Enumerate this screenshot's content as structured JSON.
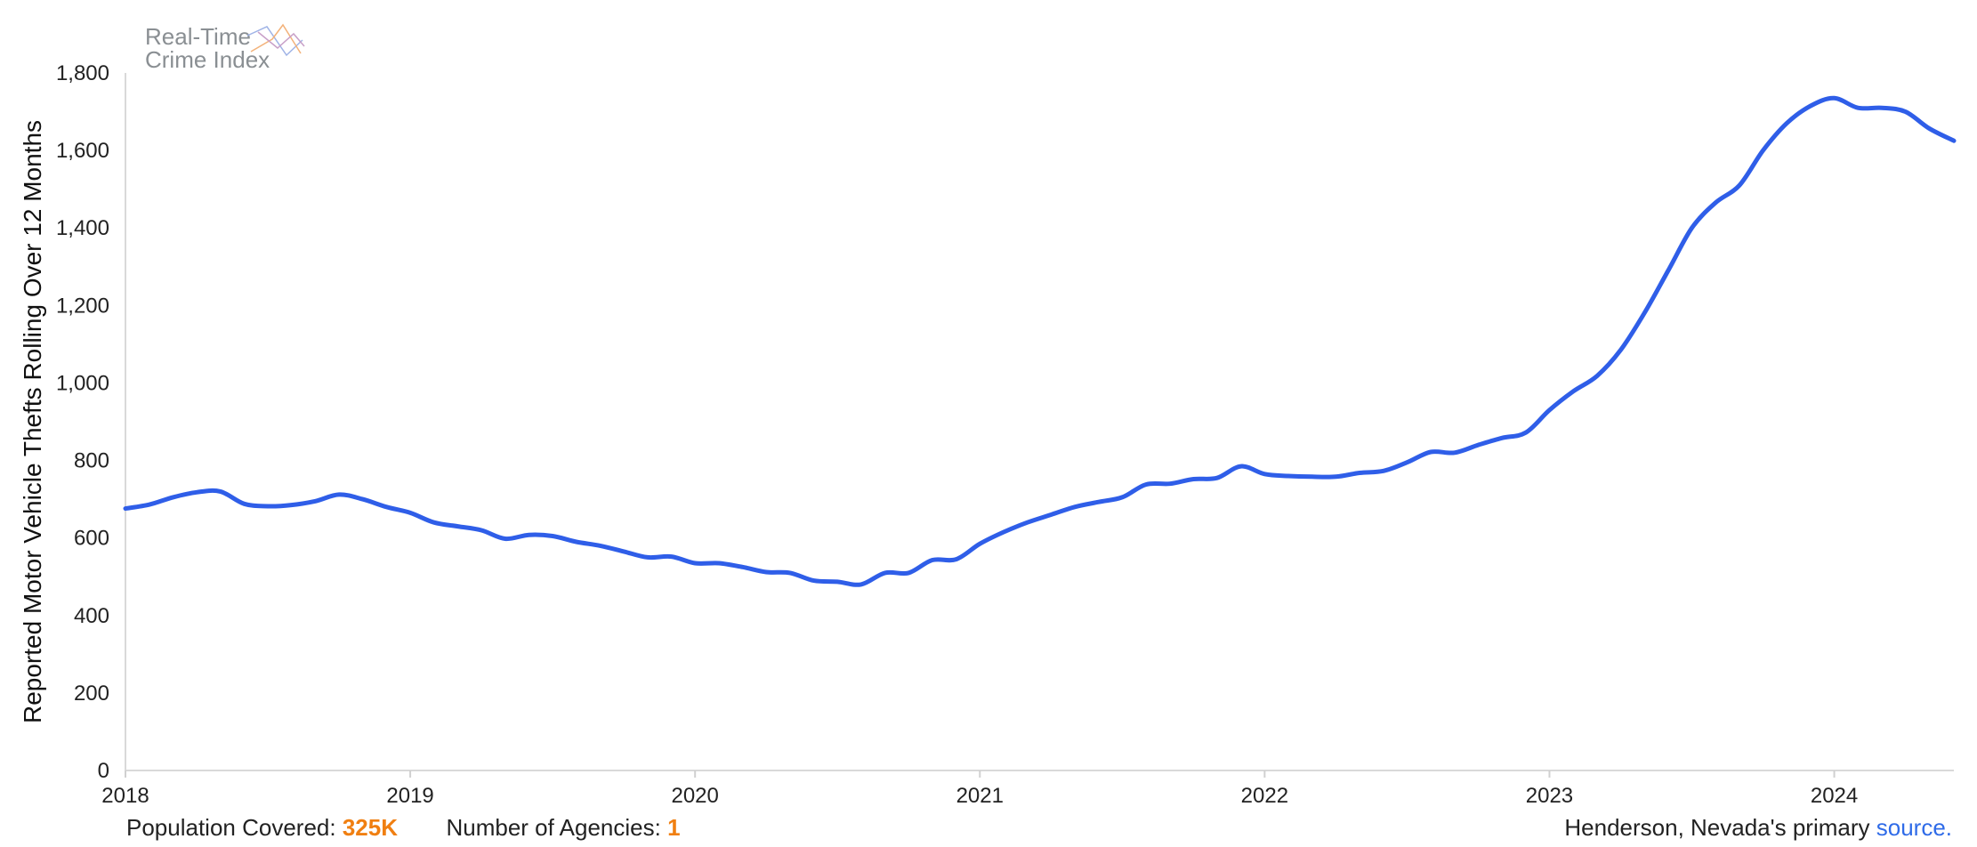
{
  "logo": {
    "line1": "Real-Time",
    "line2": "Crime Index"
  },
  "footer": {
    "population_label": "Population Covered:",
    "population_value": "325K",
    "agencies_label": "Number of Agencies:",
    "agencies_value": "1",
    "source_prefix": "Henderson, Nevada's primary",
    "source_link": "source."
  },
  "colors": {
    "line": "#2f5ee8",
    "accent": "#f07f11",
    "link": "#2f6be8",
    "axis": "#cfcfcf"
  },
  "chart_data": {
    "type": "line",
    "title": "",
    "xlabel": "",
    "ylabel": "Reported Motor Vehicle Thefts Rolling Over 12 Months",
    "ylim": [
      0,
      1800
    ],
    "yticks": [
      0,
      200,
      400,
      600,
      800,
      1000,
      1200,
      1400,
      1600,
      1800
    ],
    "ytick_labels": [
      "0",
      "200",
      "400",
      "600",
      "800",
      "1,000",
      "1,200",
      "1,400",
      "1,600",
      "1,800"
    ],
    "xlim": [
      2018.0,
      2024.42
    ],
    "xticks": [
      2018,
      2019,
      2020,
      2021,
      2022,
      2023,
      2024
    ],
    "xtick_labels": [
      "2018",
      "2019",
      "2020",
      "2021",
      "2022",
      "2023",
      "2024"
    ],
    "grid": false,
    "series": [
      {
        "x": [
          2018.0,
          2018.083,
          2018.167,
          2018.25,
          2018.333,
          2018.417,
          2018.5,
          2018.583,
          2018.667,
          2018.75,
          2018.833,
          2018.917,
          2019.0,
          2019.083,
          2019.167,
          2019.25,
          2019.333,
          2019.417,
          2019.5,
          2019.583,
          2019.667,
          2019.75,
          2019.833,
          2019.917,
          2020.0,
          2020.083,
          2020.167,
          2020.25,
          2020.333,
          2020.417,
          2020.5,
          2020.583,
          2020.667,
          2020.75,
          2020.833,
          2020.917,
          2021.0,
          2021.083,
          2021.167,
          2021.25,
          2021.333,
          2021.417,
          2021.5,
          2021.583,
          2021.667,
          2021.75,
          2021.833,
          2021.917,
          2022.0,
          2022.083,
          2022.167,
          2022.25,
          2022.333,
          2022.417,
          2022.5,
          2022.583,
          2022.667,
          2022.75,
          2022.833,
          2022.917,
          2023.0,
          2023.083,
          2023.167,
          2023.25,
          2023.333,
          2023.417,
          2023.5,
          2023.583,
          2023.667,
          2023.75,
          2023.833,
          2023.917,
          2024.0,
          2024.083,
          2024.167,
          2024.25,
          2024.333,
          2024.42
        ],
        "y": [
          676,
          686,
          705,
          718,
          720,
          688,
          682,
          685,
          695,
          712,
          700,
          680,
          665,
          640,
          630,
          620,
          598,
          608,
          605,
          590,
          580,
          565,
          550,
          552,
          535,
          535,
          525,
          512,
          510,
          490,
          487,
          480,
          510,
          510,
          543,
          545,
          585,
          615,
          640,
          660,
          680,
          693,
          705,
          738,
          740,
          752,
          755,
          785,
          765,
          760,
          758,
          758,
          768,
          773,
          795,
          822,
          820,
          840,
          858,
          872,
          930,
          978,
          1018,
          1085,
          1180,
          1290,
          1400,
          1465,
          1510,
          1600,
          1670,
          1715,
          1735,
          1710,
          1710,
          1700,
          1657,
          1625
        ]
      }
    ]
  }
}
